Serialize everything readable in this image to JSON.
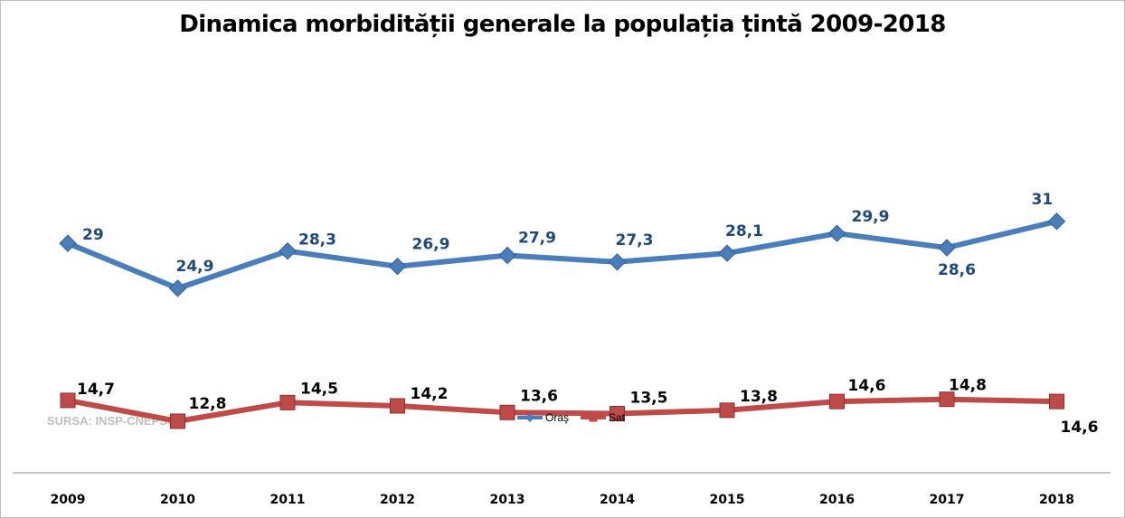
{
  "chart_data": {
    "type": "line",
    "title": "Dinamica morbidității generale la populația țintă 2009-2018",
    "categories": [
      "2009",
      "2010",
      "2011",
      "2012",
      "2013",
      "2014",
      "2015",
      "2016",
      "2017",
      "2018"
    ],
    "series": [
      {
        "name": "Oraş",
        "values": [
          29,
          24.9,
          28.3,
          26.9,
          27.9,
          27.3,
          28.1,
          29.9,
          28.6,
          31
        ],
        "labels": [
          "29",
          "24,9",
          "28,3",
          "26,9",
          "27,9",
          "27,3",
          "28,1",
          "29,9",
          "28,6",
          "31"
        ],
        "color": "#4a7ebb",
        "marker": "diamond"
      },
      {
        "name": "Sat",
        "values": [
          14.7,
          12.8,
          14.5,
          14.2,
          13.6,
          13.5,
          13.8,
          14.6,
          14.8,
          14.6
        ],
        "labels": [
          "14,7",
          "12,8",
          "14,5",
          "14,2",
          "13,6",
          "13,5",
          "13,8",
          "14,6",
          "14,8",
          "14,6"
        ],
        "color": "#be4b48",
        "marker": "square"
      }
    ],
    "ylim": [
      0,
      40
    ],
    "grid": false,
    "legend": "bottom-center",
    "source_note": "SURSA: INSP-CNEPSS"
  }
}
